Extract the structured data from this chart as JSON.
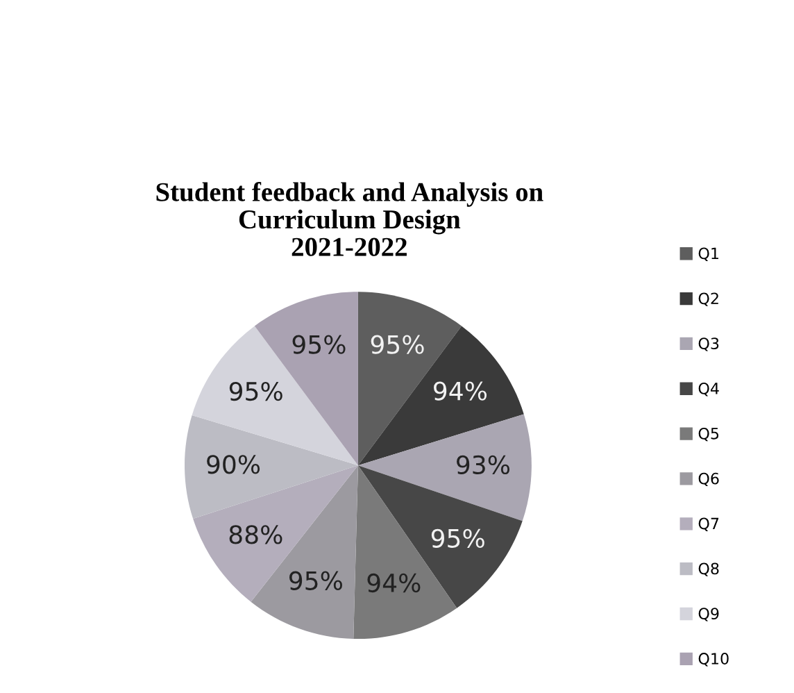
{
  "chart_data": {
    "type": "pie",
    "title": "Student feedback and Analysis on\nCurriculum Design\n2021-2022",
    "categories": [
      "Q1",
      "Q2",
      "Q3",
      "Q4",
      "Q5",
      "Q6",
      "Q7",
      "Q8",
      "Q9",
      "Q10"
    ],
    "values": [
      95,
      94,
      93,
      95,
      94,
      95,
      88,
      90,
      95,
      95
    ],
    "colors": [
      "#5e5e5e",
      "#3a3a3a",
      "#aaa6b2",
      "#474747",
      "#7a7a7a",
      "#9c9aa0",
      "#b4aebc",
      "#bcbcc4",
      "#d4d4dc",
      "#aaa2b2"
    ],
    "value_labels": [
      "95%",
      "94%",
      "93%",
      "95%",
      "94%",
      "95%",
      "88%",
      "90%",
      "95%",
      "95%"
    ],
    "legend": "right"
  }
}
